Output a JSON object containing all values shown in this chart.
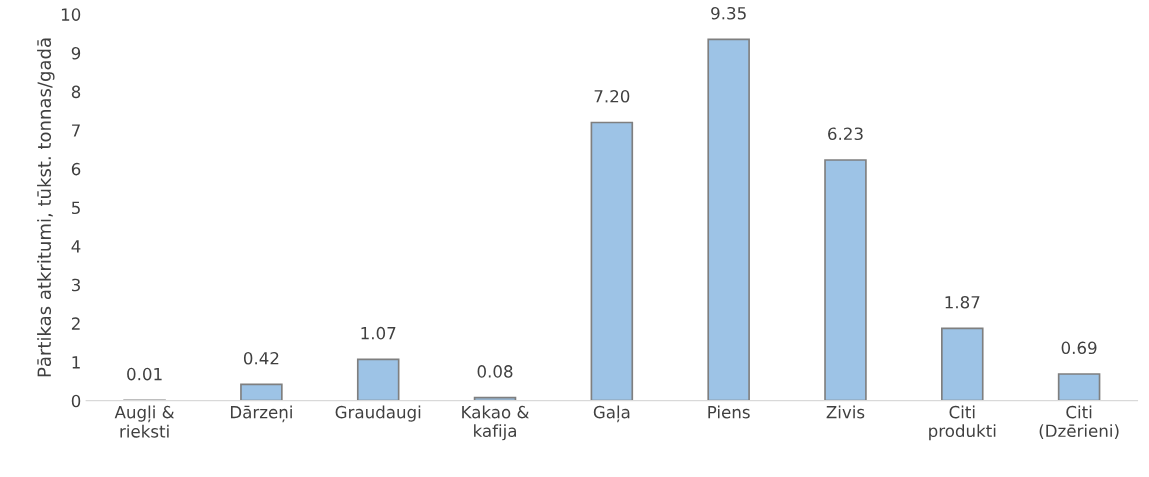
{
  "chart_data": {
    "type": "bar",
    "ylabel": "Pārtikas atkritumi, tūkst. tonnas/gadā",
    "categories": [
      "Augļi &\nrieksti",
      "Dārzeņi",
      "Graudaugi",
      "Kakao &\nkafija",
      "Gaļa",
      "Piens",
      "Zivis",
      "Citi\nprodukti",
      "Citi\n(Dzērieni)"
    ],
    "values": [
      0.01,
      0.42,
      1.07,
      0.08,
      7.2,
      9.35,
      6.23,
      1.87,
      0.69
    ],
    "value_labels": [
      "0.01",
      "0.42",
      "1.07",
      "0.08",
      "7.20",
      "9.35",
      "6.23",
      "1.87",
      "0.69"
    ],
    "color": "#9dc3e6",
    "ylim": [
      0,
      10
    ],
    "yticks": [
      0,
      1,
      2,
      3,
      4,
      5,
      6,
      7,
      8,
      9,
      10
    ],
    "grid": false
  }
}
